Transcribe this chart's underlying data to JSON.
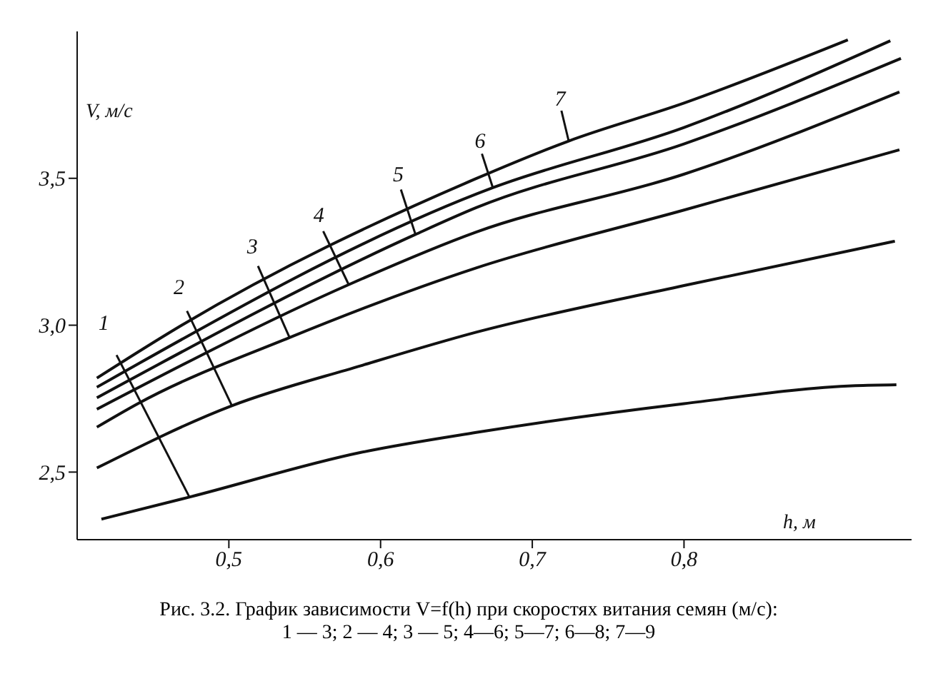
{
  "chart_data": {
    "type": "line",
    "xlabel": "h, м",
    "ylabel": "V, м/с",
    "xlim": [
      0.4,
      0.95
    ],
    "xticks": [
      {
        "value": 0.5,
        "label": "0,5"
      },
      {
        "value": 0.6,
        "label": "0,6"
      },
      {
        "value": 0.7,
        "label": "0,7"
      },
      {
        "value": 0.8,
        "label": "0,8"
      }
    ],
    "ylim": [
      2.27,
      4.0
    ],
    "yticks": [
      {
        "value": 2.5,
        "label": "2,5"
      },
      {
        "value": 3.0,
        "label": "3,0"
      },
      {
        "value": 3.5,
        "label": "3,5"
      }
    ],
    "grid": false,
    "marker": "none",
    "line_style": "solid",
    "series": [
      {
        "color": "#111111",
        "x": [
          0.416,
          0.474,
          0.587,
          0.663,
          0.8,
          0.913,
          0.94
        ],
        "values": [
          2.34,
          2.415,
          2.567,
          2.635,
          2.733,
          2.794,
          2.797
        ]
      },
      {
        "color": "#111111",
        "x": [
          0.413,
          0.502,
          0.587,
          0.663,
          0.8,
          0.939
        ],
        "values": [
          2.514,
          2.726,
          2.862,
          2.976,
          3.135,
          3.286
        ]
      },
      {
        "color": "#111111",
        "x": [
          0.413,
          0.44,
          0.54,
          0.663,
          0.8,
          0.942
        ],
        "values": [
          2.653,
          2.733,
          2.958,
          3.195,
          3.392,
          3.597
        ]
      },
      {
        "color": "#111111",
        "x": [
          0.413,
          0.579,
          0.663,
          0.8,
          0.942
        ],
        "values": [
          2.714,
          3.138,
          3.317,
          3.514,
          3.794
        ]
      },
      {
        "color": "#111111",
        "x": [
          0.413,
          0.623,
          0.663,
          0.8,
          0.943
        ],
        "values": [
          2.753,
          3.309,
          3.4,
          3.617,
          3.908
        ]
      },
      {
        "color": "#111111",
        "x": [
          0.413,
          0.674,
          0.8,
          0.936
        ],
        "values": [
          2.789,
          3.468,
          3.673,
          3.968
        ]
      },
      {
        "color": "#111111",
        "x": [
          0.413,
          0.469,
          0.663,
          0.724,
          0.8,
          0.908
        ],
        "values": [
          2.82,
          3.0,
          3.499,
          3.627,
          3.756,
          3.971
        ]
      }
    ],
    "annotations": [
      {
        "text": "1",
        "x": 0.474,
        "y": 2.415
      },
      {
        "text": "2",
        "x": 0.502,
        "y": 2.726
      },
      {
        "text": "3",
        "x": 0.54,
        "y": 2.958
      },
      {
        "text": "4",
        "x": 0.579,
        "y": 3.138
      },
      {
        "text": "5",
        "x": 0.623,
        "y": 3.309
      },
      {
        "text": "6",
        "x": 0.674,
        "y": 3.468
      },
      {
        "text": "7",
        "x": 0.724,
        "y": 3.627
      },
      "Рис. 3.2. График зависимости V=f(h) при скоростях витания семян (м/с):",
      "1 — 3; 2 — 4; 3 — 5; 4—6; 5—7; 6—8; 7—9"
    ]
  }
}
